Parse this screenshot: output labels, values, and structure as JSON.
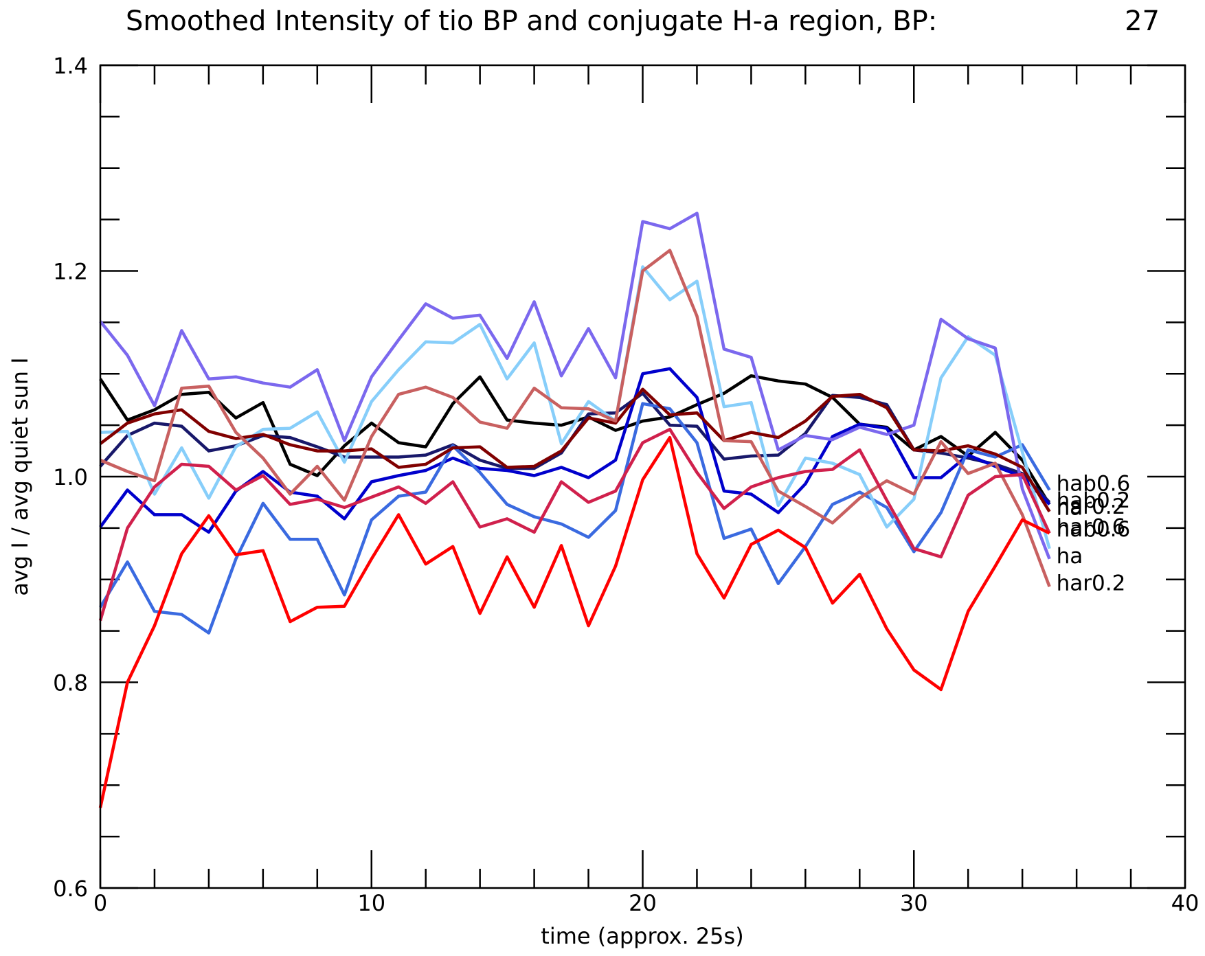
{
  "chart_data": {
    "type": "line",
    "title": "Smoothed Intensity of tio BP and conjugate H-a region, BP:",
    "title_value": "27",
    "xlabel": "time (approx. 25s)",
    "ylabel": "avg I / avg quiet sun I",
    "xlim": [
      0,
      40
    ],
    "ylim": [
      0.6,
      1.4
    ],
    "x_ticks": [
      "0",
      "10",
      "20",
      "30",
      "40"
    ],
    "y_ticks": [
      "0.6",
      "0.8",
      "1.0",
      "1.2",
      "1.4"
    ],
    "grid": false,
    "x": [
      0,
      1,
      2,
      3,
      4,
      5,
      6,
      7,
      8,
      9,
      10,
      11,
      12,
      13,
      14,
      15,
      16,
      17,
      18,
      19,
      20,
      21,
      22,
      23,
      24,
      25,
      26,
      27,
      28,
      29,
      30,
      31,
      32,
      33,
      34,
      35
    ],
    "series": [
      {
        "id": "s-black",
        "color": "#000000",
        "label": "",
        "values": [
          1.095,
          1.055,
          1.065,
          1.08,
          1.082,
          1.057,
          1.072,
          1.012,
          1.001,
          1.03,
          1.052,
          1.033,
          1.029,
          1.071,
          1.097,
          1.055,
          1.052,
          1.05,
          1.058,
          1.045,
          1.054,
          1.058,
          1.07,
          1.081,
          1.098,
          1.093,
          1.09,
          1.077,
          1.051,
          1.048,
          1.026,
          1.039,
          1.02,
          1.043,
          1.016,
          0.973
        ]
      },
      {
        "id": "s-navy",
        "color": "#18186a",
        "label": "",
        "values": [
          1.01,
          1.04,
          1.052,
          1.049,
          1.025,
          1.03,
          1.04,
          1.038,
          1.029,
          1.019,
          1.019,
          1.019,
          1.021,
          1.031,
          1.016,
          1.008,
          1.008,
          1.023,
          1.061,
          1.062,
          1.081,
          1.05,
          1.049,
          1.017,
          1.02,
          1.021,
          1.042,
          1.079,
          1.077,
          1.07,
          1.026,
          1.023,
          1.018,
          1.012,
          1.003,
          0.975
        ]
      },
      {
        "id": "s-blue",
        "color": "#0000cc",
        "label": "",
        "values": [
          0.951,
          0.987,
          0.963,
          0.963,
          0.946,
          0.986,
          1.005,
          0.985,
          0.981,
          0.959,
          0.995,
          1.001,
          1.006,
          1.018,
          1.008,
          1.006,
          1.001,
          1.009,
          0.999,
          1.016,
          1.1,
          1.105,
          1.077,
          0.986,
          0.983,
          0.965,
          0.993,
          1.039,
          1.051,
          1.047,
          0.999,
          0.999,
          1.021,
          1.01,
          1.0,
          0.973
        ]
      },
      {
        "id": "s-royal",
        "color": "#3a6ae0",
        "label": "hab0.6",
        "values": [
          0.873,
          0.917,
          0.869,
          0.866,
          0.848,
          0.92,
          0.974,
          0.939,
          0.939,
          0.885,
          0.958,
          0.981,
          0.985,
          1.03,
          1.004,
          0.973,
          0.961,
          0.954,
          0.941,
          0.967,
          1.071,
          1.066,
          1.033,
          0.94,
          0.949,
          0.896,
          0.932,
          0.973,
          0.985,
          0.97,
          0.927,
          0.965,
          1.026,
          1.019,
          1.031,
          0.987
        ]
      },
      {
        "id": "s-sky",
        "color": "#87cefa",
        "label": "hab0.2",
        "values": [
          1.043,
          1.044,
          0.983,
          1.028,
          0.979,
          1.029,
          1.046,
          1.047,
          1.063,
          1.014,
          1.073,
          1.104,
          1.131,
          1.13,
          1.148,
          1.095,
          1.13,
          1.032,
          1.073,
          1.054,
          1.204,
          1.172,
          1.19,
          1.068,
          1.072,
          0.972,
          1.018,
          1.013,
          1.002,
          0.951,
          0.978,
          1.096,
          1.136,
          1.118,
          1.024,
          0.93
        ]
      },
      {
        "id": "s-lavender",
        "color": "#7b68ee",
        "label": "ha",
        "values": [
          1.151,
          1.118,
          1.069,
          1.142,
          1.095,
          1.097,
          1.091,
          1.087,
          1.104,
          1.035,
          1.097,
          1.133,
          1.168,
          1.154,
          1.157,
          1.115,
          1.17,
          1.098,
          1.144,
          1.096,
          1.248,
          1.241,
          1.256,
          1.124,
          1.116,
          1.026,
          1.04,
          1.036,
          1.048,
          1.041,
          1.05,
          1.153,
          1.134,
          1.125,
          0.988,
          0.92
        ]
      },
      {
        "id": "s-darkred",
        "color": "#800000",
        "label": "har0.6",
        "values": [
          1.032,
          1.052,
          1.061,
          1.065,
          1.044,
          1.037,
          1.041,
          1.031,
          1.025,
          1.025,
          1.027,
          1.009,
          1.012,
          1.028,
          1.029,
          1.009,
          1.01,
          1.025,
          1.057,
          1.052,
          1.085,
          1.06,
          1.062,
          1.035,
          1.043,
          1.038,
          1.054,
          1.078,
          1.08,
          1.067,
          1.026,
          1.025,
          1.03,
          1.022,
          1.009,
          0.966
        ]
      },
      {
        "id": "s-rosybrown",
        "color": "#c86060",
        "label": "har0.2",
        "values": [
          1.016,
          1.005,
          0.996,
          1.086,
          1.088,
          1.043,
          1.018,
          0.983,
          1.01,
          0.977,
          1.039,
          1.08,
          1.087,
          1.077,
          1.053,
          1.047,
          1.086,
          1.067,
          1.066,
          1.054,
          1.2,
          1.22,
          1.156,
          1.035,
          1.034,
          0.986,
          0.971,
          0.955,
          0.979,
          0.996,
          0.983,
          1.034,
          1.003,
          1.013,
          0.963,
          0.893
        ]
      },
      {
        "id": "s-crimson",
        "color": "#d0204c",
        "label": "",
        "values": [
          0.86,
          0.95,
          0.99,
          1.012,
          1.01,
          0.987,
          1.001,
          0.973,
          0.978,
          0.97,
          0.98,
          0.99,
          0.974,
          0.995,
          0.951,
          0.959,
          0.946,
          0.995,
          0.975,
          0.986,
          1.033,
          1.046,
          1.004,
          0.969,
          0.99,
          0.999,
          1.005,
          1.007,
          1.026,
          0.977,
          0.93,
          0.922,
          0.982,
          1.0,
          1.002,
          0.945
        ]
      },
      {
        "id": "s-red",
        "color": "#ff0000",
        "label": "",
        "values": [
          0.678,
          0.8,
          0.855,
          0.925,
          0.962,
          0.924,
          0.928,
          0.859,
          0.873,
          0.874,
          0.92,
          0.963,
          0.915,
          0.932,
          0.867,
          0.922,
          0.873,
          0.933,
          0.855,
          0.913,
          0.997,
          1.038,
          0.925,
          0.882,
          0.934,
          0.948,
          0.931,
          0.877,
          0.905,
          0.852,
          0.812,
          0.793,
          0.869,
          0.913,
          0.958,
          0.945
        ]
      }
    ],
    "end_labels": [
      "hab0.6",
      "hab0.2",
      "har0.2",
      "ha",
      "har0.6",
      "hab0.6",
      "ha",
      "har0.2"
    ]
  }
}
